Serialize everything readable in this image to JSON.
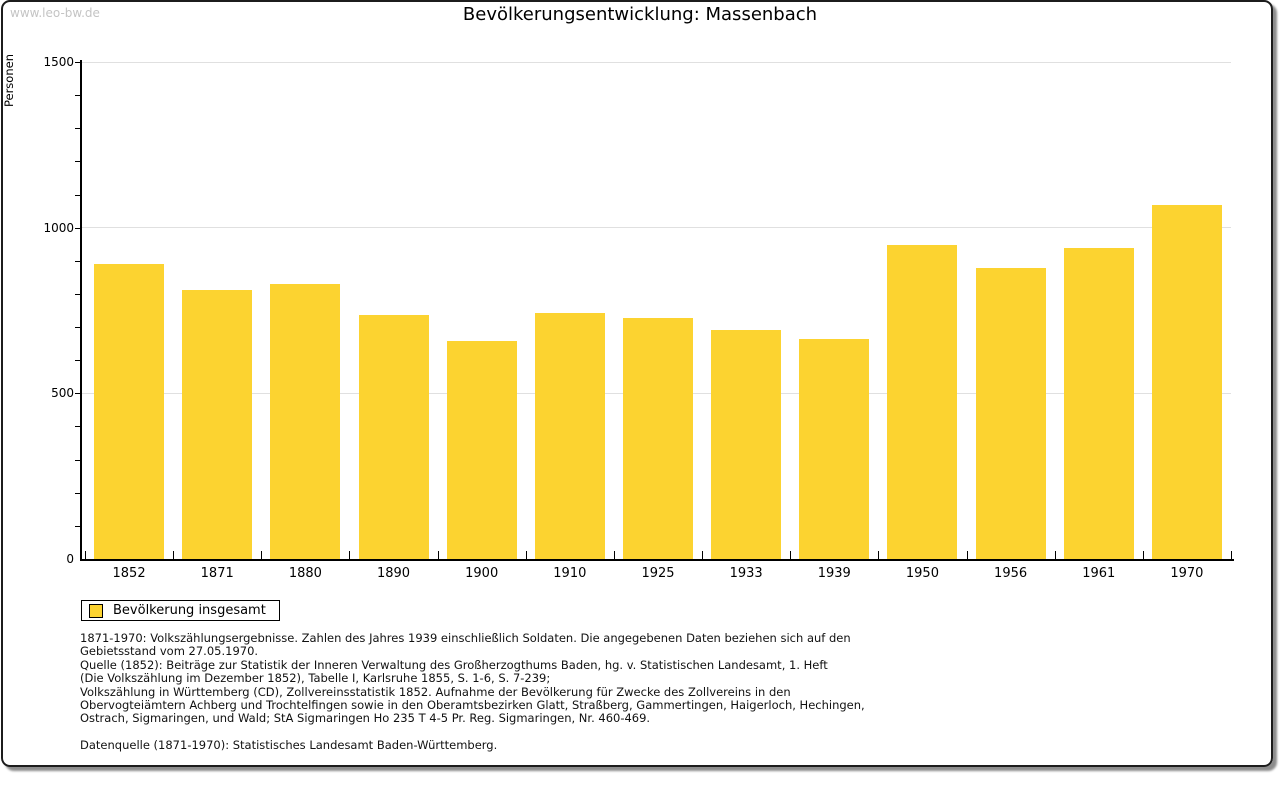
{
  "watermark": "www.leo-bw.de",
  "title": "Bevölkerungsentwicklung: Massenbach",
  "legend": {
    "label": "Bevölkerung insgesamt",
    "swatch_color": "#fcd330"
  },
  "colors": {
    "bar": "#fcd330",
    "gridline": "#e0e0e0",
    "axis": "#000000",
    "watermark_text": "#c4c4c4",
    "frame_border": "#1c1c1c"
  },
  "chart_data": {
    "type": "bar",
    "title": "Bevölkerungsentwicklung: Massenbach",
    "xlabel": "",
    "ylabel": "Personen",
    "categories": [
      "1852",
      "1871",
      "1880",
      "1890",
      "1900",
      "1910",
      "1925",
      "1933",
      "1939",
      "1950",
      "1956",
      "1961",
      "1970"
    ],
    "values": [
      890,
      811,
      831,
      737,
      658,
      743,
      726,
      691,
      665,
      947,
      879,
      940,
      1067
    ],
    "ylim": [
      0,
      1500
    ],
    "ytick_major": [
      0,
      500,
      1000,
      1500
    ],
    "ytick_minor_step": 100,
    "grid": true,
    "legend": [
      "Bevölkerung insgesamt"
    ],
    "legend_position": "bottom-left",
    "bar_color": "#fcd330"
  },
  "footnotes": {
    "para1": [
      "1871-1970: Volkszählungsergebnisse. Zahlen des Jahres 1939 einschließlich Soldaten. Die angegebenen Daten beziehen sich auf den",
      "Gebietsstand vom 27.05.1970.",
      "Quelle (1852): Beiträge zur Statistik der Inneren Verwaltung des Großherzogthums Baden, hg. v. Statistischen Landesamt, 1. Heft",
      "(Die Volkszählung im Dezember 1852), Tabelle I, Karlsruhe 1855, S. 1-6, S. 7-239;",
      "Volkszählung in Württemberg (CD), Zollvereinsstatistik 1852. Aufnahme der Bevölkerung für Zwecke des Zollvereins in den",
      "Obervogteiämtern Achberg und Trochtelfingen sowie in den Oberamtsbezirken Glatt, Straßberg, Gammertingen, Haigerloch, Hechingen,",
      "Ostrach, Sigmaringen, und Wald; StA Sigmaringen Ho 235 T 4-5 Pr. Reg. Sigmaringen, Nr. 460-469."
    ],
    "para2": [
      "Datenquelle (1871-1970): Statistisches Landesamt Baden-Württemberg."
    ]
  }
}
